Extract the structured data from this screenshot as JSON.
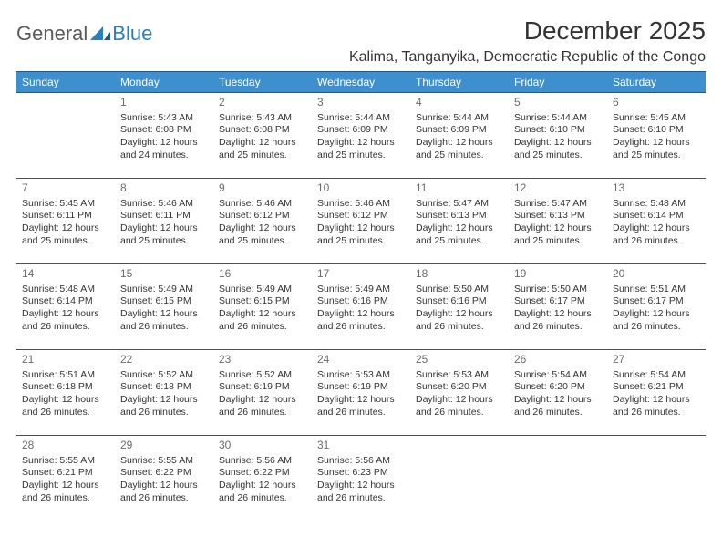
{
  "colors": {
    "header_bg": "#3e8fce",
    "border": "#1f5a8a",
    "text": "#333333",
    "daynum": "#6a6a6a",
    "logo_gray": "#5a5a5a",
    "logo_blue": "#2a7fbf",
    "background": "#ffffff"
  },
  "fonts": {
    "title_month_pt": 28,
    "title_loc_pt": 16,
    "header_cell_pt": 12,
    "daynum_pt": 12,
    "body_pt": 10.5
  },
  "logo": {
    "part1": "General",
    "part2": "Blue"
  },
  "title": {
    "month": "December 2025",
    "location": "Kalima, Tanganyika, Democratic Republic of the Congo"
  },
  "weekdays": [
    "Sunday",
    "Monday",
    "Tuesday",
    "Wednesday",
    "Thursday",
    "Friday",
    "Saturday"
  ],
  "weeks": [
    [
      null,
      {
        "n": "1",
        "sr": "Sunrise: 5:43 AM",
        "ss": "Sunset: 6:08 PM",
        "d1": "Daylight: 12 hours",
        "d2": "and 24 minutes."
      },
      {
        "n": "2",
        "sr": "Sunrise: 5:43 AM",
        "ss": "Sunset: 6:08 PM",
        "d1": "Daylight: 12 hours",
        "d2": "and 25 minutes."
      },
      {
        "n": "3",
        "sr": "Sunrise: 5:44 AM",
        "ss": "Sunset: 6:09 PM",
        "d1": "Daylight: 12 hours",
        "d2": "and 25 minutes."
      },
      {
        "n": "4",
        "sr": "Sunrise: 5:44 AM",
        "ss": "Sunset: 6:09 PM",
        "d1": "Daylight: 12 hours",
        "d2": "and 25 minutes."
      },
      {
        "n": "5",
        "sr": "Sunrise: 5:44 AM",
        "ss": "Sunset: 6:10 PM",
        "d1": "Daylight: 12 hours",
        "d2": "and 25 minutes."
      },
      {
        "n": "6",
        "sr": "Sunrise: 5:45 AM",
        "ss": "Sunset: 6:10 PM",
        "d1": "Daylight: 12 hours",
        "d2": "and 25 minutes."
      }
    ],
    [
      {
        "n": "7",
        "sr": "Sunrise: 5:45 AM",
        "ss": "Sunset: 6:11 PM",
        "d1": "Daylight: 12 hours",
        "d2": "and 25 minutes."
      },
      {
        "n": "8",
        "sr": "Sunrise: 5:46 AM",
        "ss": "Sunset: 6:11 PM",
        "d1": "Daylight: 12 hours",
        "d2": "and 25 minutes."
      },
      {
        "n": "9",
        "sr": "Sunrise: 5:46 AM",
        "ss": "Sunset: 6:12 PM",
        "d1": "Daylight: 12 hours",
        "d2": "and 25 minutes."
      },
      {
        "n": "10",
        "sr": "Sunrise: 5:46 AM",
        "ss": "Sunset: 6:12 PM",
        "d1": "Daylight: 12 hours",
        "d2": "and 25 minutes."
      },
      {
        "n": "11",
        "sr": "Sunrise: 5:47 AM",
        "ss": "Sunset: 6:13 PM",
        "d1": "Daylight: 12 hours",
        "d2": "and 25 minutes."
      },
      {
        "n": "12",
        "sr": "Sunrise: 5:47 AM",
        "ss": "Sunset: 6:13 PM",
        "d1": "Daylight: 12 hours",
        "d2": "and 25 minutes."
      },
      {
        "n": "13",
        "sr": "Sunrise: 5:48 AM",
        "ss": "Sunset: 6:14 PM",
        "d1": "Daylight: 12 hours",
        "d2": "and 26 minutes."
      }
    ],
    [
      {
        "n": "14",
        "sr": "Sunrise: 5:48 AM",
        "ss": "Sunset: 6:14 PM",
        "d1": "Daylight: 12 hours",
        "d2": "and 26 minutes."
      },
      {
        "n": "15",
        "sr": "Sunrise: 5:49 AM",
        "ss": "Sunset: 6:15 PM",
        "d1": "Daylight: 12 hours",
        "d2": "and 26 minutes."
      },
      {
        "n": "16",
        "sr": "Sunrise: 5:49 AM",
        "ss": "Sunset: 6:15 PM",
        "d1": "Daylight: 12 hours",
        "d2": "and 26 minutes."
      },
      {
        "n": "17",
        "sr": "Sunrise: 5:49 AM",
        "ss": "Sunset: 6:16 PM",
        "d1": "Daylight: 12 hours",
        "d2": "and 26 minutes."
      },
      {
        "n": "18",
        "sr": "Sunrise: 5:50 AM",
        "ss": "Sunset: 6:16 PM",
        "d1": "Daylight: 12 hours",
        "d2": "and 26 minutes."
      },
      {
        "n": "19",
        "sr": "Sunrise: 5:50 AM",
        "ss": "Sunset: 6:17 PM",
        "d1": "Daylight: 12 hours",
        "d2": "and 26 minutes."
      },
      {
        "n": "20",
        "sr": "Sunrise: 5:51 AM",
        "ss": "Sunset: 6:17 PM",
        "d1": "Daylight: 12 hours",
        "d2": "and 26 minutes."
      }
    ],
    [
      {
        "n": "21",
        "sr": "Sunrise: 5:51 AM",
        "ss": "Sunset: 6:18 PM",
        "d1": "Daylight: 12 hours",
        "d2": "and 26 minutes."
      },
      {
        "n": "22",
        "sr": "Sunrise: 5:52 AM",
        "ss": "Sunset: 6:18 PM",
        "d1": "Daylight: 12 hours",
        "d2": "and 26 minutes."
      },
      {
        "n": "23",
        "sr": "Sunrise: 5:52 AM",
        "ss": "Sunset: 6:19 PM",
        "d1": "Daylight: 12 hours",
        "d2": "and 26 minutes."
      },
      {
        "n": "24",
        "sr": "Sunrise: 5:53 AM",
        "ss": "Sunset: 6:19 PM",
        "d1": "Daylight: 12 hours",
        "d2": "and 26 minutes."
      },
      {
        "n": "25",
        "sr": "Sunrise: 5:53 AM",
        "ss": "Sunset: 6:20 PM",
        "d1": "Daylight: 12 hours",
        "d2": "and 26 minutes."
      },
      {
        "n": "26",
        "sr": "Sunrise: 5:54 AM",
        "ss": "Sunset: 6:20 PM",
        "d1": "Daylight: 12 hours",
        "d2": "and 26 minutes."
      },
      {
        "n": "27",
        "sr": "Sunrise: 5:54 AM",
        "ss": "Sunset: 6:21 PM",
        "d1": "Daylight: 12 hours",
        "d2": "and 26 minutes."
      }
    ],
    [
      {
        "n": "28",
        "sr": "Sunrise: 5:55 AM",
        "ss": "Sunset: 6:21 PM",
        "d1": "Daylight: 12 hours",
        "d2": "and 26 minutes."
      },
      {
        "n": "29",
        "sr": "Sunrise: 5:55 AM",
        "ss": "Sunset: 6:22 PM",
        "d1": "Daylight: 12 hours",
        "d2": "and 26 minutes."
      },
      {
        "n": "30",
        "sr": "Sunrise: 5:56 AM",
        "ss": "Sunset: 6:22 PM",
        "d1": "Daylight: 12 hours",
        "d2": "and 26 minutes."
      },
      {
        "n": "31",
        "sr": "Sunrise: 5:56 AM",
        "ss": "Sunset: 6:23 PM",
        "d1": "Daylight: 12 hours",
        "d2": "and 26 minutes."
      },
      null,
      null,
      null
    ]
  ]
}
